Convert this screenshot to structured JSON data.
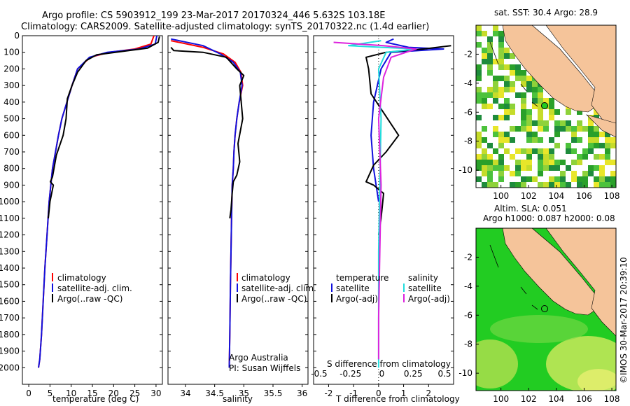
{
  "header": {
    "title_line1": "Argo profile: CS 5903912_199 23-Mar-2017 20170324_446 5.632S 103.18E",
    "title_line2": "Climatology: CARS2009. Satellite-adjusted climatology: synTS_20170322.nc (1.4d earlier)"
  },
  "footer": {
    "watermark": "©IMOS 30-Mar-2017 20:39:10"
  },
  "colors": {
    "climatology": "#ff0000",
    "satellite": "#1111dd",
    "argo": "#000000",
    "sal_satellite": "#22dddd",
    "sal_argo": "#dd22dd",
    "land": "#f5c49a",
    "ssh_field": "#22cc22"
  },
  "chart_data": [
    {
      "type": "line",
      "name": "temperature",
      "xlabel": "temperature (deg C)",
      "ylabel": "",
      "xlim": [
        -1.5,
        31.5
      ],
      "ylim": [
        2100,
        0
      ],
      "xticks": [
        0,
        5,
        10,
        15,
        20,
        25,
        30
      ],
      "yticks": [
        0,
        100,
        200,
        300,
        400,
        500,
        600,
        700,
        800,
        900,
        1000,
        1100,
        1200,
        1300,
        1400,
        1500,
        1600,
        1700,
        1800,
        1900,
        2000
      ],
      "legend": [
        "climatology",
        "satellite-adj. clim.",
        "Argo(..raw -QC)"
      ],
      "legend_position": "lower-middle",
      "series": [
        {
          "name": "climatology",
          "color_key": "climatology",
          "x": [
            29.5,
            28.8,
            25,
            19,
            14.5,
            11.5,
            10.2,
            9.0,
            7.8,
            7.0,
            6.3,
            5.6,
            4.8,
            4.3,
            3.8,
            3.4,
            3.0,
            2.6,
            2.3
          ],
          "y": [
            0,
            50,
            80,
            100,
            130,
            200,
            300,
            400,
            500,
            600,
            700,
            800,
            1000,
            1200,
            1400,
            1600,
            1800,
            1950,
            2000
          ]
        },
        {
          "name": "satellite-adj. clim.",
          "color_key": "satellite",
          "x": [
            30.2,
            29.8,
            26,
            18.5,
            14.3,
            11.5,
            10.2,
            9.0,
            7.8,
            7.0,
            6.3,
            5.6,
            4.8,
            4.3,
            3.8,
            3.4,
            3.0,
            2.6,
            2.3
          ],
          "y": [
            0,
            50,
            80,
            100,
            130,
            200,
            300,
            400,
            500,
            600,
            700,
            800,
            1000,
            1200,
            1400,
            1600,
            1800,
            1950,
            2000
          ]
        },
        {
          "name": "Argo(..raw -QC)",
          "color_key": "argo",
          "x": [
            30.8,
            30.5,
            28,
            22,
            16,
            13.5,
            11.5,
            10.2,
            9.1,
            8.8,
            8.1,
            6.5,
            5.6,
            5.1,
            5.8,
            5.0,
            4.6
          ],
          "y": [
            5,
            40,
            75,
            95,
            115,
            150,
            220,
            300,
            380,
            500,
            600,
            720,
            850,
            880,
            900,
            1000,
            1100
          ]
        }
      ]
    },
    {
      "type": "line",
      "name": "salinity",
      "xlabel": "salinity",
      "xlim": [
        33.7,
        36.1
      ],
      "ylim": [
        2100,
        0
      ],
      "xticks": [
        34,
        34.5,
        35,
        35.5,
        36
      ],
      "legend": [
        "climatology",
        "satellite-adj. clim.",
        "Argo(..raw -QC)"
      ],
      "annotation": [
        "Argo Australia",
        "PI: Susan Wijffels"
      ],
      "series": [
        {
          "name": "climatology",
          "color_key": "climatology",
          "x": [
            33.75,
            34.3,
            34.65,
            34.85,
            34.95,
            34.98,
            34.92,
            34.88,
            34.85,
            34.83,
            34.82,
            34.8,
            34.79,
            34.78,
            34.77,
            34.76,
            34.75
          ],
          "y": [
            30,
            70,
            110,
            160,
            220,
            300,
            400,
            500,
            600,
            700,
            800,
            900,
            1100,
            1300,
            1500,
            1800,
            2000
          ]
        },
        {
          "name": "satellite-adj. clim.",
          "color_key": "satellite",
          "x": [
            33.75,
            34.3,
            34.6,
            34.82,
            34.94,
            34.97,
            34.92,
            34.88,
            34.85,
            34.83,
            34.82,
            34.8,
            34.79,
            34.78,
            34.77,
            34.76,
            34.75
          ],
          "y": [
            20,
            60,
            110,
            160,
            220,
            300,
            400,
            500,
            600,
            700,
            800,
            900,
            1100,
            1300,
            1500,
            1800,
            2000
          ]
        },
        {
          "name": "Argo(..raw -QC)",
          "color_key": "argo",
          "x": [
            33.75,
            33.8,
            34.3,
            34.7,
            34.88,
            35.0,
            34.93,
            34.98,
            34.9,
            34.93,
            34.88,
            34.82,
            34.8,
            34.78,
            34.76
          ],
          "y": [
            70,
            90,
            100,
            130,
            200,
            240,
            300,
            500,
            650,
            760,
            840,
            880,
            950,
            1050,
            1100
          ]
        }
      ]
    },
    {
      "type": "line",
      "name": "difference from climatology",
      "xlabel_top": "S difference from climatology",
      "xticks_top": [
        -0.5,
        -0.25,
        0,
        0.25,
        0.5
      ],
      "xlabel": "T difference from climatology",
      "xlim": [
        -2.6,
        3.0
      ],
      "xticks": [
        -2,
        -1,
        0,
        1,
        2
      ],
      "ylim": [
        2100,
        0
      ],
      "legend_left": [
        "temperature",
        "satellite",
        "Argo(-adj)"
      ],
      "legend_right": [
        "salinity",
        "satellite",
        "Argo(-adj)"
      ],
      "series": [
        {
          "name": "temperature satellite",
          "color_key": "satellite",
          "x": [
            0.6,
            0.3,
            1.2,
            2.6,
            0.5,
            0.1,
            -0.2,
            -0.3,
            -0.2,
            0.0
          ],
          "y": [
            20,
            40,
            70,
            80,
            100,
            200,
            400,
            600,
            800,
            1000
          ]
        },
        {
          "name": "temperature Argo(-adj)",
          "color_key": "argo",
          "x": [
            2.9,
            1.8,
            0.3,
            -0.5,
            -0.4,
            -0.3,
            0.8,
            0.3,
            -0.2,
            -0.5,
            -0.2,
            0.2,
            0.1,
            0.0
          ],
          "y": [
            60,
            80,
            100,
            130,
            200,
            350,
            600,
            700,
            780,
            880,
            900,
            950,
            1100,
            1200
          ]
        },
        {
          "name": "salinity satellite",
          "color_key": "sal_satellite",
          "x": [
            0.1,
            -1.2,
            1.5,
            0.3,
            0.0,
            0.1,
            0.05,
            0.0,
            0.0,
            0.0
          ],
          "y": [
            30,
            60,
            80,
            100,
            200,
            500,
            900,
            1300,
            1700,
            2000
          ]
        },
        {
          "name": "salinity Argo(-adj)",
          "color_key": "sal_argo",
          "x": [
            -1.8,
            0.2,
            1.5,
            0.5,
            0.2,
            0.0,
            0.1,
            0.05,
            0.0,
            0.0
          ],
          "y": [
            40,
            60,
            80,
            130,
            250,
            500,
            900,
            1300,
            1700,
            1950
          ]
        }
      ]
    },
    {
      "type": "heatmap",
      "name": "sea surface temperature map",
      "title": "sat. SST: 30.4  Argo: 28.9",
      "xticks": [
        100,
        102,
        104,
        106,
        108
      ],
      "yticks": [
        -2,
        -4,
        -6,
        -8,
        -10
      ],
      "xlim": [
        98.2,
        108.3
      ],
      "ylim": [
        -11.2,
        0
      ],
      "marker": {
        "lon": 103.18,
        "lat": -5.632
      }
    },
    {
      "type": "heatmap",
      "name": "sea level anomaly map",
      "title": "Altim. SLA: 0.051",
      "subtitle": "Argo h1000: 0.087  h2000: 0.08",
      "xticks": [
        100,
        102,
        104,
        106,
        108
      ],
      "yticks": [
        -2,
        -4,
        -6,
        -8,
        -10
      ],
      "xlim": [
        98.2,
        108.3
      ],
      "ylim": [
        -11.2,
        0
      ],
      "marker": {
        "lon": 103.18,
        "lat": -5.632
      }
    }
  ]
}
